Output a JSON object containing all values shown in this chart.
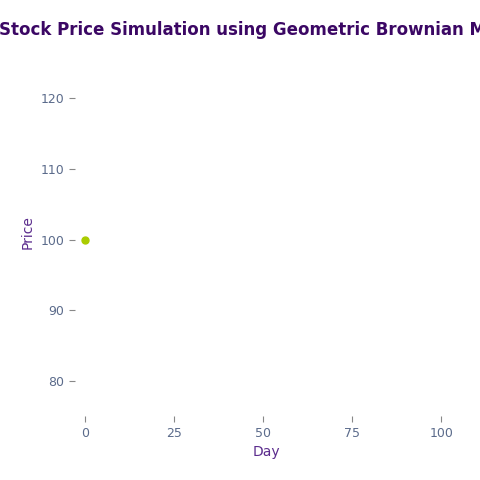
{
  "title": "Stock Price Simulation using Geometric Brownian Motion",
  "title_color": "#3B0764",
  "title_fontsize": 12,
  "title_fontweight": "bold",
  "xlabel": "Day",
  "ylabel": "Price",
  "axis_label_color": "#5B2C8D",
  "axis_label_fontsize": 10,
  "tick_label_color": "#5B6B8B",
  "tick_label_fontsize": 9,
  "xlim": [
    -3,
    105
  ],
  "ylim": [
    75,
    127
  ],
  "xticks": [
    0,
    25,
    50,
    75,
    100
  ],
  "yticks": [
    80,
    90,
    100,
    110,
    120
  ],
  "background_color": "#ffffff",
  "dot_x": 0,
  "dot_y": 100,
  "dot_color": "#aacc00",
  "dot_size": 25
}
